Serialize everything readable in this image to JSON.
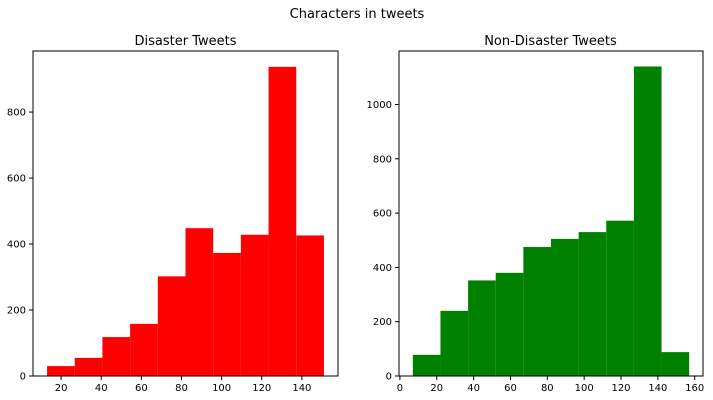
{
  "figure": {
    "suptitle": "Characters in tweets"
  },
  "chart_data": [
    {
      "type": "bar",
      "histogram": true,
      "title": "Disaster Tweets",
      "xlabel": "",
      "ylabel": "",
      "color": "#ff0000",
      "bin_edges": [
        13,
        26.8,
        40.6,
        54.4,
        68.2,
        82,
        95.8,
        109.6,
        123.4,
        137.2,
        151
      ],
      "values": [
        30,
        55,
        118,
        158,
        302,
        448,
        373,
        428,
        937,
        426
      ],
      "xlim": [
        6,
        158
      ],
      "ylim": [
        0,
        985
      ],
      "xticks": [
        20,
        40,
        60,
        80,
        100,
        120,
        140
      ],
      "yticks": [
        0,
        200,
        400,
        600,
        800
      ],
      "grid": false
    },
    {
      "type": "bar",
      "histogram": true,
      "title": "Non-Disaster Tweets",
      "xlabel": "",
      "ylabel": "",
      "color": "#008000",
      "bin_edges": [
        7,
        22,
        37,
        52,
        67,
        82,
        97,
        112,
        127,
        142,
        157
      ],
      "values": [
        78,
        240,
        352,
        380,
        475,
        505,
        530,
        572,
        1140,
        88
      ],
      "xlim": [
        -0.5,
        164.5
      ],
      "ylim": [
        0,
        1197
      ],
      "xticks": [
        0,
        20,
        40,
        60,
        80,
        100,
        120,
        140,
        160
      ],
      "yticks": [
        0,
        200,
        400,
        600,
        800,
        1000
      ],
      "grid": false
    }
  ]
}
